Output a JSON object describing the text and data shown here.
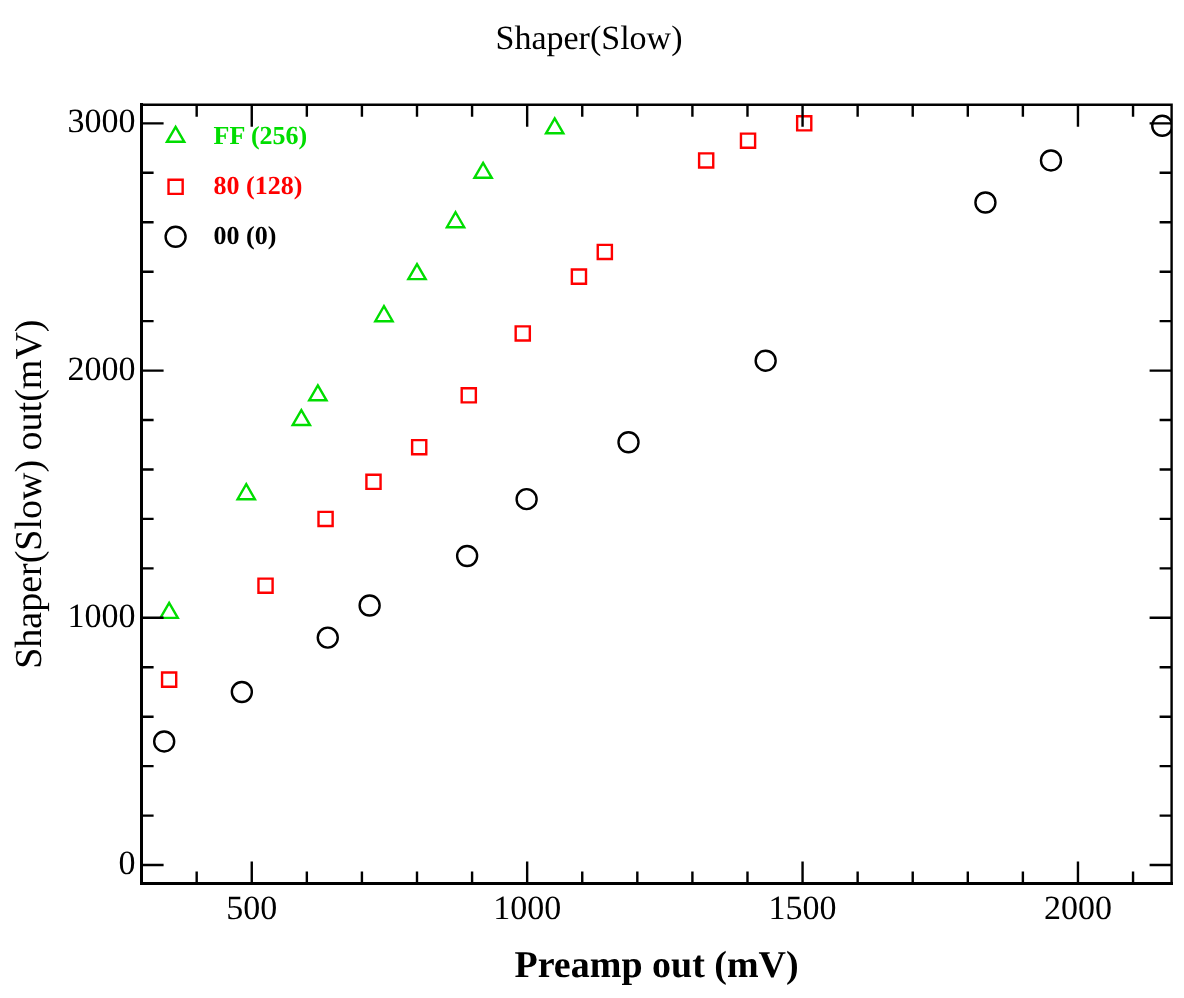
{
  "chart_data": {
    "type": "scatter",
    "title": "Shaper(Slow)",
    "xlabel": "Preamp out (mV)",
    "ylabel": "Shaper(Slow) out(mV)",
    "xlim": [
      300,
      2170
    ],
    "ylim": [
      -75,
      3075
    ],
    "xticks": [
      {
        "value": 300,
        "label": null
      },
      {
        "value": 400,
        "label": null
      },
      500,
      {
        "value": 600,
        "label": null
      },
      {
        "value": 700,
        "label": null
      },
      {
        "value": 800,
        "label": null
      },
      {
        "value": 900,
        "label": null
      },
      1000,
      {
        "value": 1100,
        "label": null
      },
      {
        "value": 1200,
        "label": null
      },
      {
        "value": 1300,
        "label": null
      },
      {
        "value": 1400,
        "label": null
      },
      1500,
      {
        "value": 1600,
        "label": null
      },
      {
        "value": 1700,
        "label": null
      },
      {
        "value": 1800,
        "label": null
      },
      {
        "value": 1900,
        "label": null
      },
      2000,
      {
        "value": 2100,
        "label": null
      }
    ],
    "yticks": [
      0,
      {
        "value": 200,
        "label": null
      },
      {
        "value": 400,
        "label": null
      },
      {
        "value": 600,
        "label": null
      },
      {
        "value": 800,
        "label": null
      },
      1000,
      {
        "value": 1200,
        "label": null
      },
      {
        "value": 1400,
        "label": null
      },
      {
        "value": 1600,
        "label": null
      },
      {
        "value": 1800,
        "label": null
      },
      2000,
      {
        "value": 2200,
        "label": null
      },
      {
        "value": 2400,
        "label": null
      },
      {
        "value": 2600,
        "label": null
      },
      {
        "value": 2800,
        "label": null
      },
      3000
    ],
    "grid": false,
    "legend": "top left",
    "series": [
      {
        "name": "FF (256)",
        "color": "#00dd00",
        "marker": "triangle",
        "x": [
          350,
          490,
          590,
          620,
          740,
          800,
          870,
          920,
          1050
        ],
        "values": [
          1020,
          1500,
          1800,
          1900,
          2220,
          2390,
          2600,
          2800,
          2980
        ]
      },
      {
        "name": "80 (128)",
        "color": "#ff0000",
        "marker": "square",
        "x": [
          350,
          525,
          634,
          721,
          804,
          894,
          992,
          1094,
          1141,
          1325,
          1401,
          1503
        ],
        "values": [
          750,
          1130,
          1400,
          1550,
          1690,
          1900,
          2150,
          2380,
          2480,
          2850,
          2930,
          3000
        ]
      },
      {
        "name": "00 (0)",
        "color": "#000000",
        "marker": "circle",
        "x": [
          341,
          482,
          638,
          714,
          891,
          999,
          1184,
          1433,
          1832,
          1951,
          2153
        ],
        "values": [
          500,
          700,
          920,
          1050,
          1250,
          1480,
          1710,
          2040,
          2680,
          2850,
          2990
        ]
      }
    ]
  }
}
